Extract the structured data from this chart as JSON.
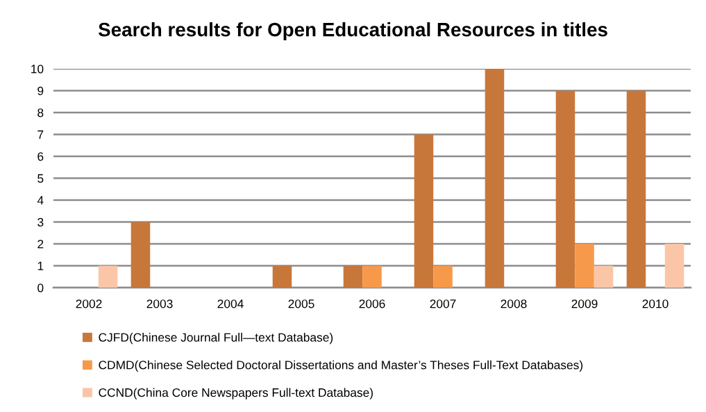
{
  "chart_data": {
    "type": "bar",
    "title": "Search results for Open Educational Resources in titles",
    "categories": [
      "2002",
      "2003",
      "2004",
      "2005",
      "2006",
      "2007",
      "2008",
      "2009",
      "2010"
    ],
    "series": [
      {
        "name": "CJFD(Chinese Journal Full—text Database)",
        "color": "#c8773a",
        "values": [
          0,
          3,
          0,
          1,
          1,
          7,
          10,
          9,
          9
        ]
      },
      {
        "name": "CDMD(Chinese Selected Doctoral Dissertations and Master’s Theses Full-Text Databases)",
        "color": "#f7994a",
        "values": [
          0,
          0,
          0,
          0,
          1,
          1,
          0,
          2,
          0
        ]
      },
      {
        "name": "CCND(China Core Newspapers Full-text Database)",
        "color": "#fbc6a8",
        "values": [
          1,
          0,
          0,
          0,
          0,
          0,
          0,
          1,
          2
        ]
      }
    ],
    "ylim": [
      0,
      10
    ],
    "yticks": [
      0,
      1,
      2,
      3,
      4,
      5,
      6,
      7,
      8,
      9,
      10
    ],
    "grid": "y",
    "legend": "bottom"
  }
}
